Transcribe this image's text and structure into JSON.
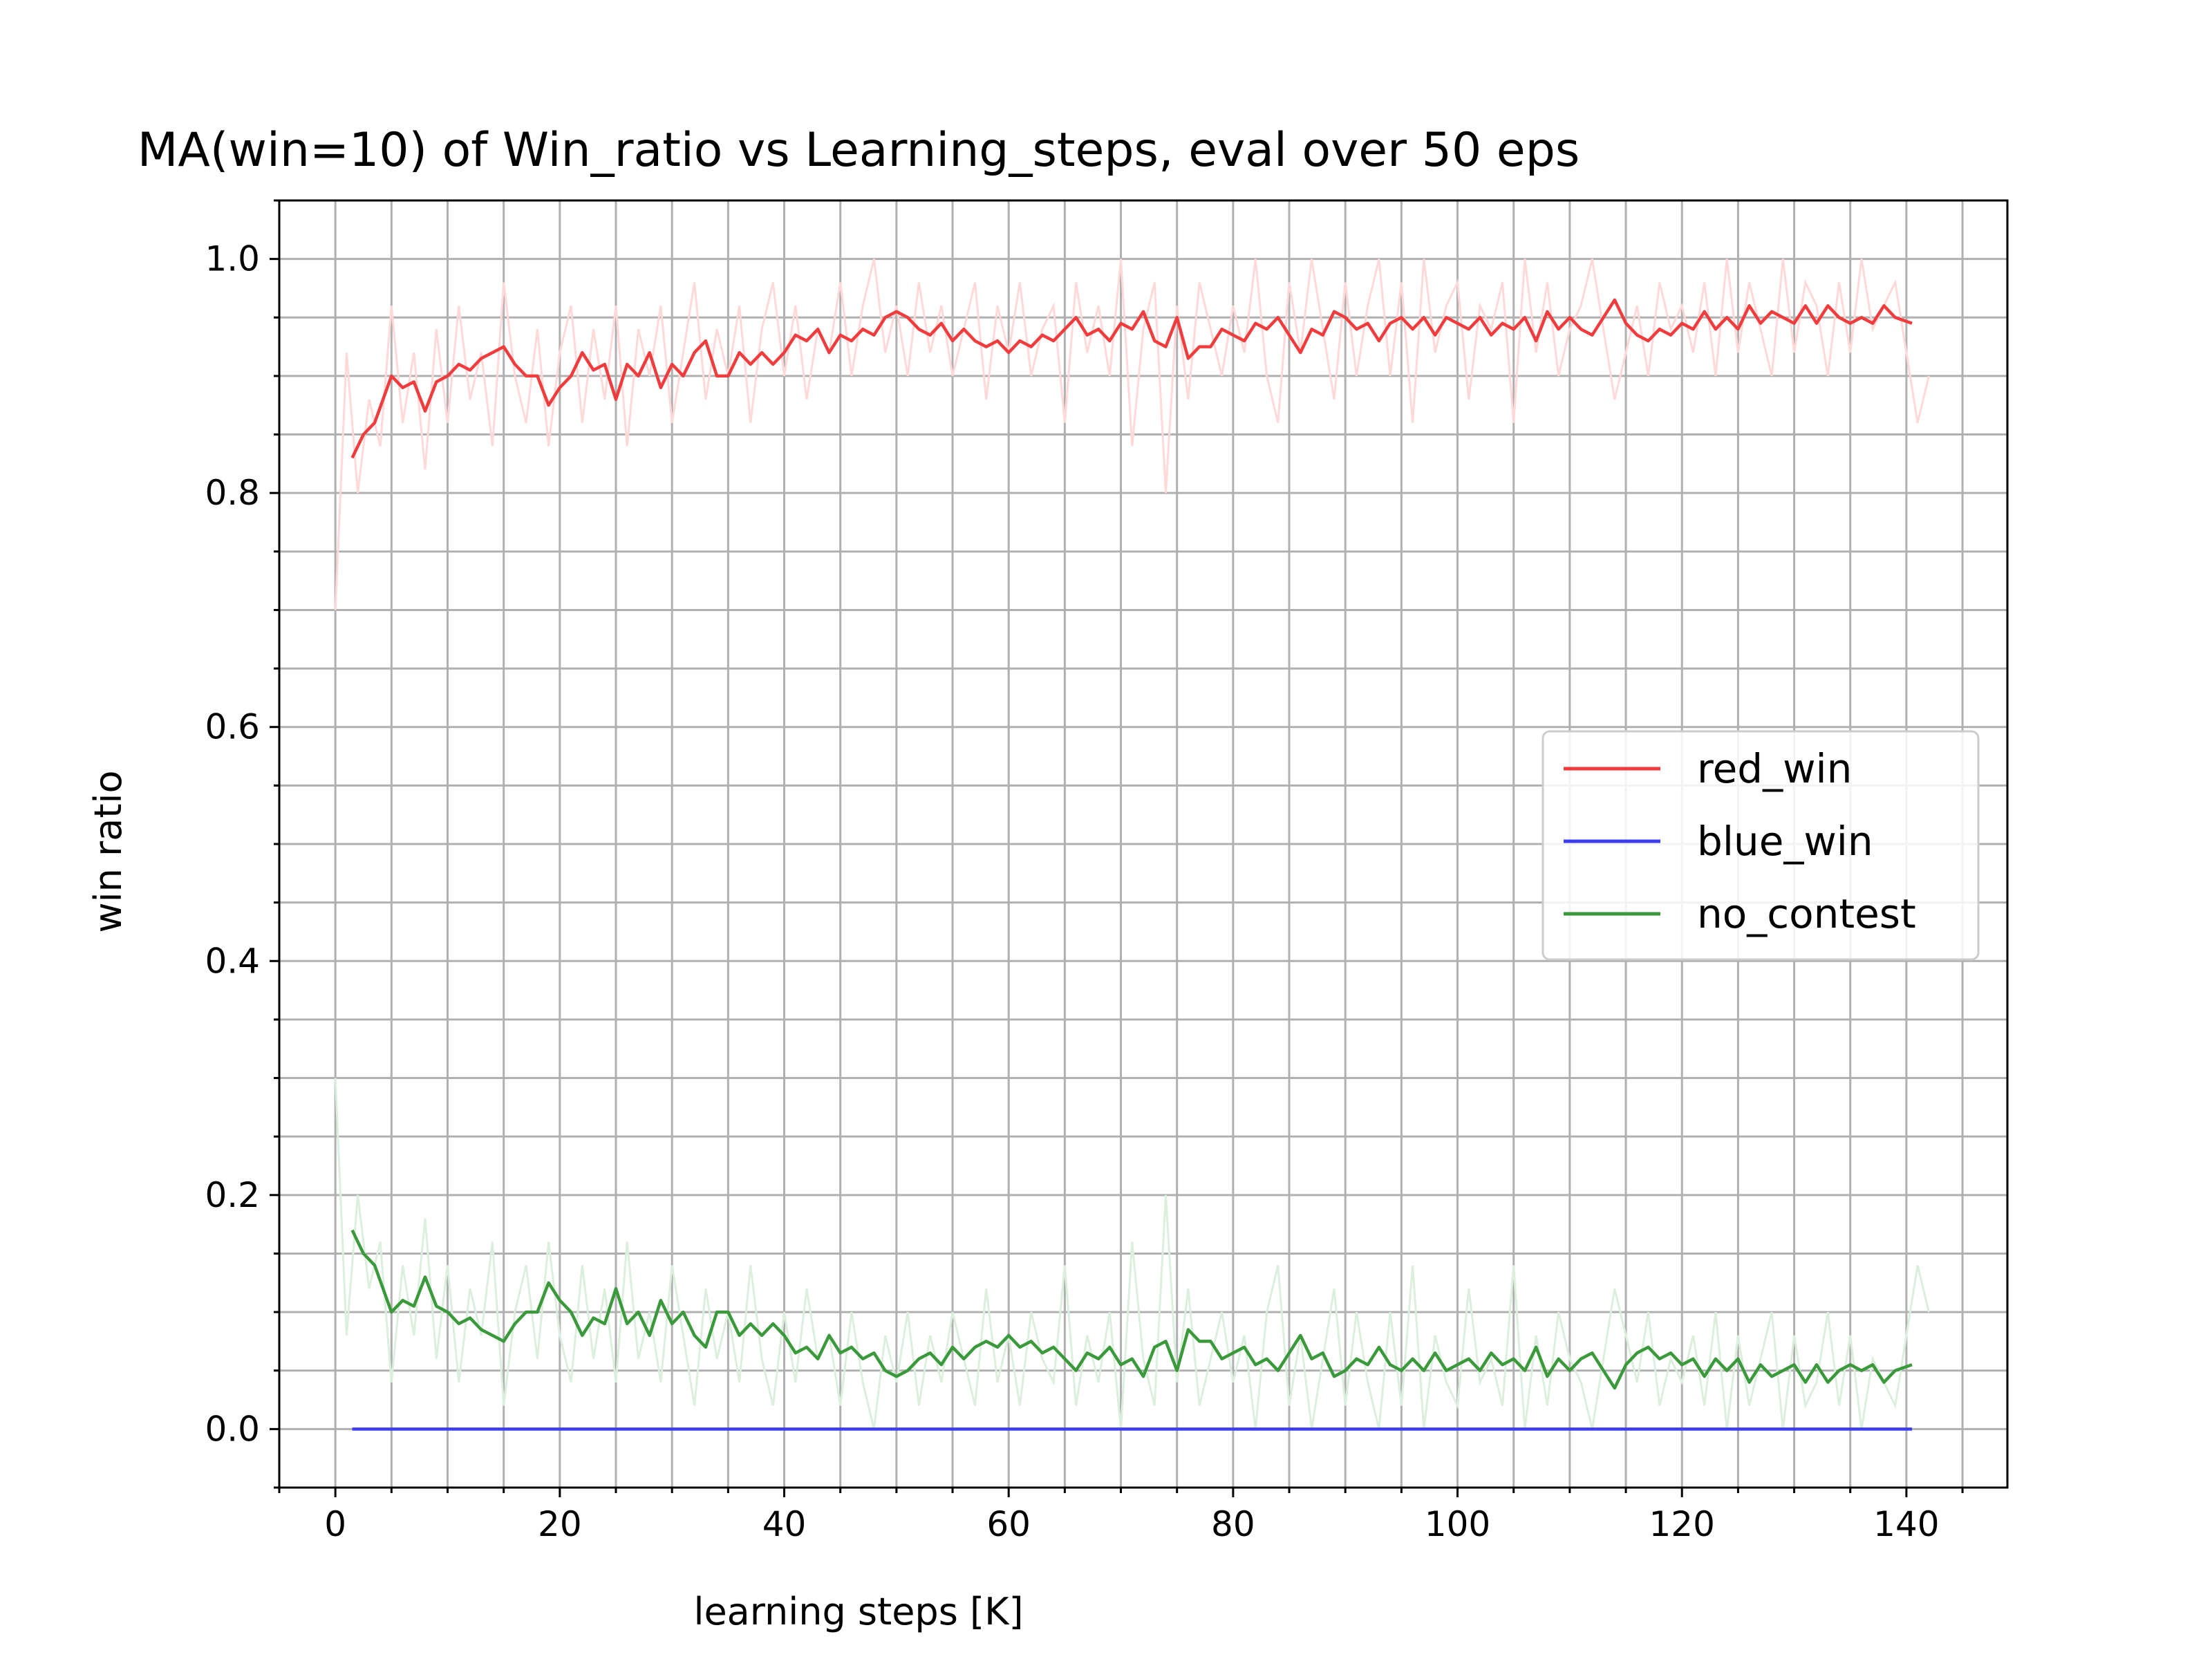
{
  "chart_data": {
    "type": "line",
    "title": "MA(win=10) of Win_ratio vs Learning_steps, eval over 50 eps",
    "xlabel": "learning steps [K]",
    "ylabel": "win ratio",
    "xlim": [
      -5,
      149
    ],
    "ylim": [
      -0.05,
      1.05
    ],
    "x_ticks": [
      0,
      20,
      40,
      60,
      80,
      100,
      120,
      140
    ],
    "x_tick_labels": [
      "0",
      "20",
      "40",
      "60",
      "80",
      "100",
      "120",
      "140"
    ],
    "y_ticks": [
      0.0,
      0.2,
      0.4,
      0.6,
      0.8,
      1.0
    ],
    "y_tick_labels": [
      "0.0",
      "0.2",
      "0.4",
      "0.6",
      "0.8",
      "1.0"
    ],
    "x_minor_step": 5,
    "y_minor_step": 0.05,
    "grid": true,
    "legend_position": "center-right",
    "series": [
      {
        "name": "red_win",
        "color": "#f03c3c",
        "raw_color": "#ffd8d8",
        "x": [
          1.5,
          2.5,
          3.5,
          5,
          6,
          7,
          8,
          9,
          10,
          11,
          12,
          13,
          14,
          15,
          16,
          17,
          18,
          19,
          20,
          21,
          22,
          23,
          24,
          25,
          26,
          27,
          28,
          29,
          30,
          31,
          32,
          33,
          34,
          35,
          36,
          37,
          38,
          39,
          40,
          41,
          42,
          43,
          44,
          45,
          46,
          47,
          48,
          49,
          50,
          51,
          52,
          53,
          54,
          55,
          56,
          57,
          58,
          59,
          60,
          61,
          62,
          63,
          64,
          65,
          66,
          67,
          68,
          69,
          70,
          71,
          72,
          73,
          74,
          75,
          76,
          77,
          78,
          79,
          80,
          81,
          82,
          83,
          84,
          85,
          86,
          87,
          88,
          89,
          90,
          91,
          92,
          93,
          94,
          95,
          96,
          97,
          98,
          99,
          100,
          101,
          102,
          103,
          104,
          105,
          106,
          107,
          108,
          109,
          110,
          111,
          112,
          113,
          114,
          115,
          116,
          117,
          118,
          119,
          120,
          121,
          122,
          123,
          124,
          125,
          126,
          127,
          128,
          129,
          130,
          131,
          132,
          133,
          134,
          135,
          136,
          137,
          138,
          139,
          140.5
        ],
        "y": [
          0.83,
          0.85,
          0.86,
          0.9,
          0.89,
          0.895,
          0.87,
          0.895,
          0.9,
          0.91,
          0.905,
          0.915,
          0.92,
          0.925,
          0.91,
          0.9,
          0.9,
          0.875,
          0.89,
          0.9,
          0.92,
          0.905,
          0.91,
          0.88,
          0.91,
          0.9,
          0.92,
          0.89,
          0.91,
          0.9,
          0.92,
          0.93,
          0.9,
          0.9,
          0.92,
          0.91,
          0.92,
          0.91,
          0.92,
          0.935,
          0.93,
          0.94,
          0.92,
          0.935,
          0.93,
          0.94,
          0.935,
          0.95,
          0.955,
          0.95,
          0.94,
          0.935,
          0.945,
          0.93,
          0.94,
          0.93,
          0.925,
          0.93,
          0.92,
          0.93,
          0.925,
          0.935,
          0.93,
          0.94,
          0.95,
          0.935,
          0.94,
          0.93,
          0.945,
          0.94,
          0.955,
          0.93,
          0.925,
          0.95,
          0.915,
          0.925,
          0.925,
          0.94,
          0.935,
          0.93,
          0.945,
          0.94,
          0.95,
          0.935,
          0.92,
          0.94,
          0.935,
          0.955,
          0.95,
          0.94,
          0.945,
          0.93,
          0.945,
          0.95,
          0.94,
          0.95,
          0.935,
          0.95,
          0.945,
          0.94,
          0.95,
          0.935,
          0.945,
          0.94,
          0.95,
          0.93,
          0.955,
          0.94,
          0.95,
          0.94,
          0.935,
          0.95,
          0.965,
          0.945,
          0.935,
          0.93,
          0.94,
          0.935,
          0.945,
          0.94,
          0.955,
          0.94,
          0.95,
          0.94,
          0.96,
          0.945,
          0.955,
          0.95,
          0.945,
          0.96,
          0.945,
          0.96,
          0.95,
          0.945,
          0.95,
          0.945,
          0.96,
          0.95,
          0.945
        ],
        "raw_x": [
          0,
          1,
          2,
          3,
          4,
          5,
          6,
          7,
          8,
          9,
          10,
          11,
          12,
          13,
          14,
          15,
          16,
          17,
          18,
          19,
          20,
          21,
          22,
          23,
          24,
          25,
          26,
          27,
          28,
          29,
          30,
          31,
          32,
          33,
          34,
          35,
          36,
          37,
          38,
          39,
          40,
          41,
          42,
          43,
          44,
          45,
          46,
          47,
          48,
          49,
          50,
          51,
          52,
          53,
          54,
          55,
          56,
          57,
          58,
          59,
          60,
          61,
          62,
          63,
          64,
          65,
          66,
          67,
          68,
          69,
          70,
          71,
          72,
          73,
          74,
          75,
          76,
          77,
          78,
          79,
          80,
          81,
          82,
          83,
          84,
          85,
          86,
          87,
          88,
          89,
          90,
          91,
          92,
          93,
          94,
          95,
          96,
          97,
          98,
          99,
          100,
          101,
          102,
          103,
          104,
          105,
          106,
          107,
          108,
          109,
          110,
          111,
          112,
          113,
          114,
          115,
          116,
          117,
          118,
          119,
          120,
          121,
          122,
          123,
          124,
          125,
          126,
          127,
          128,
          129,
          130,
          131,
          132,
          133,
          134,
          135,
          136,
          137,
          138,
          139,
          140,
          141,
          142
        ],
        "raw_y": [
          0.7,
          0.92,
          0.8,
          0.88,
          0.84,
          0.96,
          0.86,
          0.92,
          0.82,
          0.94,
          0.86,
          0.96,
          0.88,
          0.92,
          0.84,
          0.98,
          0.9,
          0.86,
          0.94,
          0.84,
          0.92,
          0.96,
          0.86,
          0.94,
          0.88,
          0.96,
          0.84,
          0.94,
          0.9,
          0.96,
          0.86,
          0.92,
          0.98,
          0.88,
          0.94,
          0.9,
          0.96,
          0.86,
          0.94,
          0.98,
          0.9,
          0.96,
          0.88,
          0.94,
          0.92,
          0.98,
          0.9,
          0.96,
          1.0,
          0.92,
          0.96,
          0.9,
          0.98,
          0.92,
          0.96,
          0.9,
          0.94,
          0.98,
          0.88,
          0.96,
          0.92,
          0.98,
          0.9,
          0.94,
          0.96,
          0.86,
          0.98,
          0.92,
          0.96,
          0.9,
          1.0,
          0.84,
          0.94,
          0.98,
          0.8,
          0.96,
          0.88,
          0.98,
          0.94,
          0.9,
          0.96,
          0.92,
          1.0,
          0.9,
          0.86,
          0.98,
          0.92,
          1.0,
          0.94,
          0.88,
          0.98,
          0.9,
          0.96,
          1.0,
          0.9,
          0.98,
          0.86,
          1.0,
          0.92,
          0.96,
          0.98,
          0.88,
          0.96,
          0.94,
          0.98,
          0.86,
          1.0,
          0.92,
          0.98,
          0.9,
          0.94,
          0.96,
          1.0,
          0.94,
          0.88,
          0.92,
          0.96,
          0.9,
          0.98,
          0.94,
          0.96,
          0.92,
          0.98,
          0.9,
          1.0,
          0.92,
          0.98,
          0.94,
          0.9,
          1.0,
          0.92,
          0.98,
          0.96,
          0.9,
          0.98,
          0.92,
          1.0,
          0.94,
          0.96,
          0.98,
          0.92,
          0.86,
          0.9
        ]
      },
      {
        "name": "blue_win",
        "color": "#3c3cf0",
        "x": [
          1.5,
          140.5
        ],
        "y": [
          0.0,
          0.0
        ]
      },
      {
        "name": "no_contest",
        "color": "#3a993a",
        "raw_color": "#dcefdc",
        "x": [
          1.5,
          2.5,
          3.5,
          5,
          6,
          7,
          8,
          9,
          10,
          11,
          12,
          13,
          14,
          15,
          16,
          17,
          18,
          19,
          20,
          21,
          22,
          23,
          24,
          25,
          26,
          27,
          28,
          29,
          30,
          31,
          32,
          33,
          34,
          35,
          36,
          37,
          38,
          39,
          40,
          41,
          42,
          43,
          44,
          45,
          46,
          47,
          48,
          49,
          50,
          51,
          52,
          53,
          54,
          55,
          56,
          57,
          58,
          59,
          60,
          61,
          62,
          63,
          64,
          65,
          66,
          67,
          68,
          69,
          70,
          71,
          72,
          73,
          74,
          75,
          76,
          77,
          78,
          79,
          80,
          81,
          82,
          83,
          84,
          85,
          86,
          87,
          88,
          89,
          90,
          91,
          92,
          93,
          94,
          95,
          96,
          97,
          98,
          99,
          100,
          101,
          102,
          103,
          104,
          105,
          106,
          107,
          108,
          109,
          110,
          111,
          112,
          113,
          114,
          115,
          116,
          117,
          118,
          119,
          120,
          121,
          122,
          123,
          124,
          125,
          126,
          127,
          128,
          129,
          130,
          131,
          132,
          133,
          134,
          135,
          136,
          137,
          138,
          139,
          140.5
        ],
        "y": [
          0.17,
          0.15,
          0.14,
          0.1,
          0.11,
          0.105,
          0.13,
          0.105,
          0.1,
          0.09,
          0.095,
          0.085,
          0.08,
          0.075,
          0.09,
          0.1,
          0.1,
          0.125,
          0.11,
          0.1,
          0.08,
          0.095,
          0.09,
          0.12,
          0.09,
          0.1,
          0.08,
          0.11,
          0.09,
          0.1,
          0.08,
          0.07,
          0.1,
          0.1,
          0.08,
          0.09,
          0.08,
          0.09,
          0.08,
          0.065,
          0.07,
          0.06,
          0.08,
          0.065,
          0.07,
          0.06,
          0.065,
          0.05,
          0.045,
          0.05,
          0.06,
          0.065,
          0.055,
          0.07,
          0.06,
          0.07,
          0.075,
          0.07,
          0.08,
          0.07,
          0.075,
          0.065,
          0.07,
          0.06,
          0.05,
          0.065,
          0.06,
          0.07,
          0.055,
          0.06,
          0.045,
          0.07,
          0.075,
          0.05,
          0.085,
          0.075,
          0.075,
          0.06,
          0.065,
          0.07,
          0.055,
          0.06,
          0.05,
          0.065,
          0.08,
          0.06,
          0.065,
          0.045,
          0.05,
          0.06,
          0.055,
          0.07,
          0.055,
          0.05,
          0.06,
          0.05,
          0.065,
          0.05,
          0.055,
          0.06,
          0.05,
          0.065,
          0.055,
          0.06,
          0.05,
          0.07,
          0.045,
          0.06,
          0.05,
          0.06,
          0.065,
          0.05,
          0.035,
          0.055,
          0.065,
          0.07,
          0.06,
          0.065,
          0.055,
          0.06,
          0.045,
          0.06,
          0.05,
          0.06,
          0.04,
          0.055,
          0.045,
          0.05,
          0.055,
          0.04,
          0.055,
          0.04,
          0.05,
          0.055,
          0.05,
          0.055,
          0.04,
          0.05,
          0.055
        ],
        "raw_x": [
          0,
          1,
          2,
          3,
          4,
          5,
          6,
          7,
          8,
          9,
          10,
          11,
          12,
          13,
          14,
          15,
          16,
          17,
          18,
          19,
          20,
          21,
          22,
          23,
          24,
          25,
          26,
          27,
          28,
          29,
          30,
          31,
          32,
          33,
          34,
          35,
          36,
          37,
          38,
          39,
          40,
          41,
          42,
          43,
          44,
          45,
          46,
          47,
          48,
          49,
          50,
          51,
          52,
          53,
          54,
          55,
          56,
          57,
          58,
          59,
          60,
          61,
          62,
          63,
          64,
          65,
          66,
          67,
          68,
          69,
          70,
          71,
          72,
          73,
          74,
          75,
          76,
          77,
          78,
          79,
          80,
          81,
          82,
          83,
          84,
          85,
          86,
          87,
          88,
          89,
          90,
          91,
          92,
          93,
          94,
          95,
          96,
          97,
          98,
          99,
          100,
          101,
          102,
          103,
          104,
          105,
          106,
          107,
          108,
          109,
          110,
          111,
          112,
          113,
          114,
          115,
          116,
          117,
          118,
          119,
          120,
          121,
          122,
          123,
          124,
          125,
          126,
          127,
          128,
          129,
          130,
          131,
          132,
          133,
          134,
          135,
          136,
          137,
          138,
          139,
          140,
          141,
          142
        ],
        "raw_y": [
          0.3,
          0.08,
          0.2,
          0.12,
          0.16,
          0.04,
          0.14,
          0.08,
          0.18,
          0.06,
          0.14,
          0.04,
          0.12,
          0.08,
          0.16,
          0.02,
          0.1,
          0.14,
          0.06,
          0.16,
          0.08,
          0.04,
          0.14,
          0.06,
          0.12,
          0.04,
          0.16,
          0.06,
          0.1,
          0.04,
          0.14,
          0.08,
          0.02,
          0.12,
          0.06,
          0.1,
          0.04,
          0.14,
          0.06,
          0.02,
          0.1,
          0.04,
          0.12,
          0.06,
          0.08,
          0.02,
          0.1,
          0.04,
          0.0,
          0.08,
          0.04,
          0.1,
          0.02,
          0.08,
          0.04,
          0.1,
          0.06,
          0.02,
          0.12,
          0.04,
          0.08,
          0.02,
          0.1,
          0.06,
          0.04,
          0.14,
          0.02,
          0.08,
          0.04,
          0.1,
          0.0,
          0.16,
          0.06,
          0.02,
          0.2,
          0.04,
          0.12,
          0.02,
          0.06,
          0.1,
          0.04,
          0.08,
          0.0,
          0.1,
          0.14,
          0.02,
          0.08,
          0.0,
          0.06,
          0.12,
          0.02,
          0.1,
          0.04,
          0.0,
          0.1,
          0.02,
          0.14,
          0.0,
          0.08,
          0.04,
          0.02,
          0.12,
          0.04,
          0.06,
          0.02,
          0.14,
          0.0,
          0.08,
          0.02,
          0.1,
          0.06,
          0.04,
          0.0,
          0.06,
          0.12,
          0.08,
          0.04,
          0.1,
          0.02,
          0.06,
          0.04,
          0.08,
          0.02,
          0.1,
          0.0,
          0.08,
          0.02,
          0.06,
          0.1,
          0.0,
          0.08,
          0.02,
          0.04,
          0.1,
          0.02,
          0.08,
          0.0,
          0.06,
          0.04,
          0.02,
          0.08,
          0.14,
          0.1
        ]
      }
    ]
  }
}
